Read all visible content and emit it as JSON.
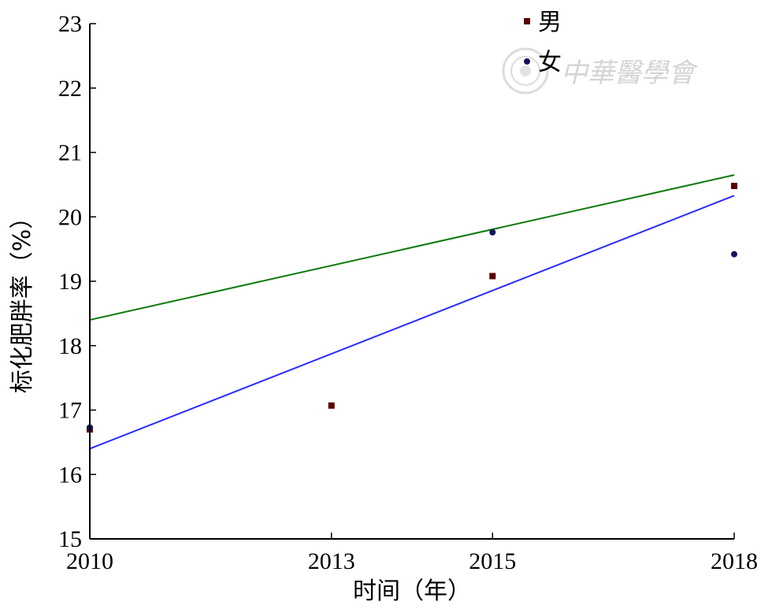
{
  "chart_data": {
    "type": "scatter",
    "xlabel": "时间（年）",
    "ylabel": "标化肥胖率（%）",
    "x_ticks": [
      2010,
      2013,
      2015,
      2018
    ],
    "y_ticks": [
      15,
      16,
      17,
      18,
      19,
      20,
      21,
      22,
      23
    ],
    "xlim": [
      2010,
      2018
    ],
    "ylim": [
      15,
      23
    ],
    "grid": false,
    "legend_position": "top-right",
    "series": [
      {
        "name": "男",
        "marker": "square",
        "color": "#5a0000",
        "points": [
          {
            "x": 2010,
            "y": 16.7
          },
          {
            "x": 2013,
            "y": 17.07
          },
          {
            "x": 2015,
            "y": 19.08
          },
          {
            "x": 2018,
            "y": 20.48
          }
        ],
        "trendline": {
          "color": "#0b7a0b",
          "x": [
            2010,
            2018
          ],
          "y": [
            18.4,
            20.65
          ]
        }
      },
      {
        "name": "女",
        "marker": "circle",
        "color": "#14145a",
        "points": [
          {
            "x": 2010,
            "y": 16.73
          },
          {
            "x": 2015,
            "y": 19.76
          },
          {
            "x": 2018,
            "y": 19.42
          }
        ],
        "trendline": {
          "color": "#2a2aff",
          "x": [
            2010,
            2018
          ],
          "y": [
            16.4,
            20.33
          ]
        }
      }
    ]
  },
  "watermark": {
    "text": "中華醫學會"
  }
}
